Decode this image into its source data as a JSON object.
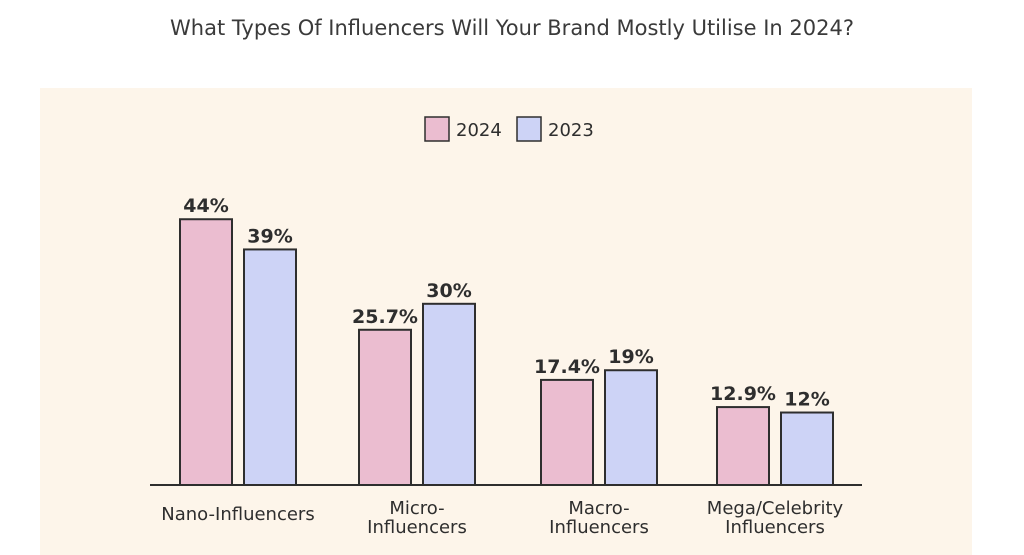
{
  "chart_data": {
    "type": "bar",
    "title": "What Types Of Influencers Will Your Brand Mostly Utilise In 2024?",
    "categories": [
      [
        "Nano-Influencers"
      ],
      [
        "Micro-",
        "Influencers"
      ],
      [
        "Macro-",
        "Influencers"
      ],
      [
        "Mega/Celebrity",
        "Influencers"
      ]
    ],
    "series": [
      {
        "name": "2024",
        "color": "#ebbdd0",
        "values": [
          44,
          25.7,
          17.4,
          12.9
        ],
        "labels": [
          "44%",
          "25.7%",
          "17.4%",
          "12.9%"
        ]
      },
      {
        "name": "2023",
        "color": "#cdd3f6",
        "values": [
          39,
          30,
          19,
          12
        ],
        "labels": [
          "39%",
          "30%",
          "19%",
          "12%"
        ]
      }
    ],
    "ylim": [
      0,
      50
    ],
    "xlabel": "",
    "ylabel": "",
    "legend": "top-center",
    "grid": false
  }
}
